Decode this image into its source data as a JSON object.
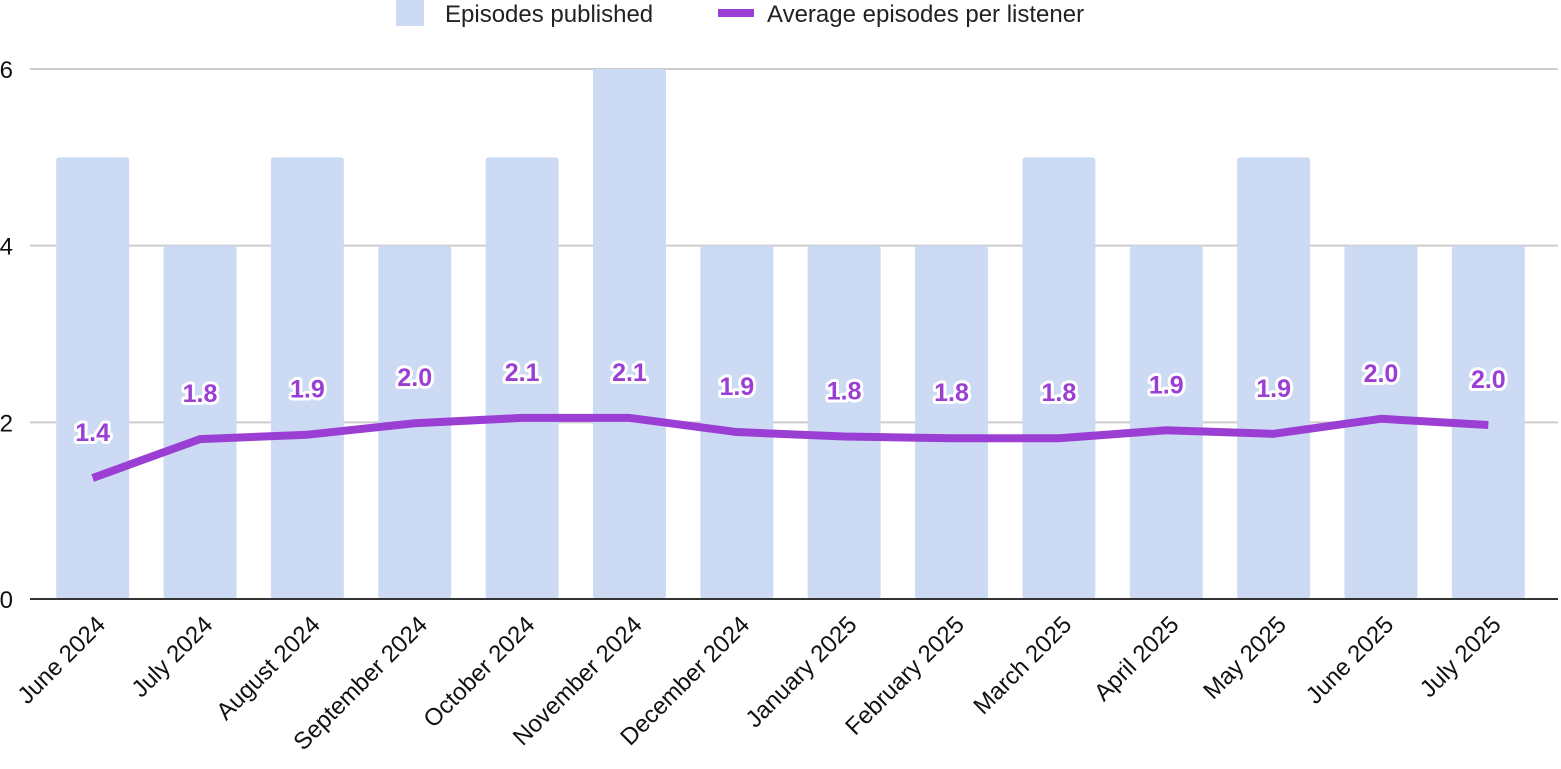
{
  "chart_data": {
    "type": "bar",
    "title": "",
    "xlabel": "",
    "ylabel": "",
    "ylim": [
      0,
      6
    ],
    "yticks": [
      0,
      2,
      4,
      6
    ],
    "grid": true,
    "legend_position": "top",
    "categories": [
      "June 2024",
      "July 2024",
      "August 2024",
      "September 2024",
      "October 2024",
      "November 2024",
      "December 2024",
      "January 2025",
      "February 2025",
      "March 2025",
      "April 2025",
      "May 2025",
      "June 2025",
      "July 2025"
    ],
    "series": [
      {
        "name": "Episodes published",
        "kind": "bar",
        "color": "#ccdaf4",
        "values": [
          5,
          4,
          5,
          4,
          5,
          6,
          4,
          4,
          4,
          5,
          4,
          5,
          4,
          4
        ]
      },
      {
        "name": "Average episodes per listener",
        "kind": "line",
        "color": "#9b3fd4",
        "values": [
          1.37,
          1.81,
          1.86,
          1.99,
          2.05,
          2.05,
          1.89,
          1.84,
          1.82,
          1.82,
          1.91,
          1.87,
          2.04,
          1.97
        ],
        "labels": [
          "1.4",
          "1.8",
          "1.9",
          "2.0",
          "2.1",
          "2.1",
          "1.9",
          "1.8",
          "1.8",
          "1.8",
          "1.9",
          "1.9",
          "2.0",
          "2.0"
        ]
      }
    ]
  }
}
